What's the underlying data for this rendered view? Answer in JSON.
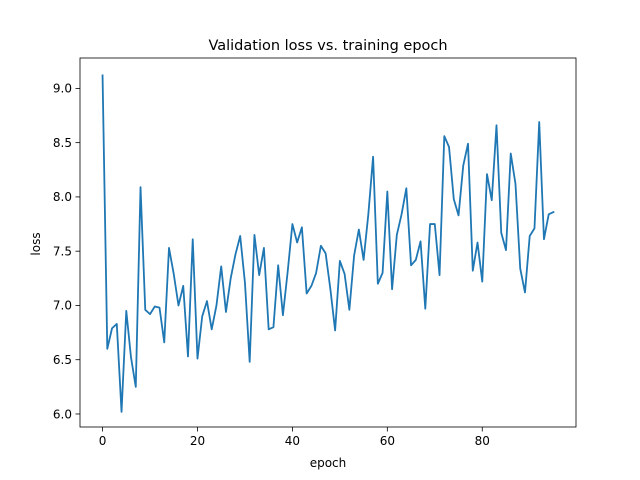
{
  "chart_data": {
    "type": "line",
    "title": "Validation loss vs. training epoch",
    "xlabel": "epoch",
    "ylabel": "loss",
    "xlim": [
      -4.75,
      99.75
    ],
    "ylim": [
      5.88,
      9.28
    ],
    "xticks": [
      0,
      20,
      40,
      60,
      80
    ],
    "xtick_labels": [
      "0",
      "20",
      "40",
      "60",
      "80"
    ],
    "yticks": [
      6.0,
      6.5,
      7.0,
      7.5,
      8.0,
      8.5,
      9.0
    ],
    "ytick_labels": [
      "6.0",
      "6.5",
      "7.0",
      "7.5",
      "8.0",
      "8.5",
      "9.0"
    ],
    "grid": false,
    "series": [
      {
        "color": "#1f77b4",
        "x": [
          0,
          1,
          2,
          3,
          4,
          5,
          6,
          7,
          8,
          9,
          10,
          11,
          12,
          13,
          14,
          15,
          16,
          17,
          18,
          19,
          20,
          21,
          22,
          23,
          24,
          25,
          26,
          27,
          28,
          29,
          30,
          31,
          32,
          33,
          34,
          35,
          36,
          37,
          38,
          39,
          40,
          41,
          42,
          43,
          44,
          45,
          46,
          47,
          48,
          49,
          50,
          51,
          52,
          53,
          54,
          55,
          56,
          57,
          58,
          59,
          60,
          61,
          62,
          63,
          64,
          65,
          66,
          67,
          68,
          69,
          70,
          71,
          72,
          73,
          74,
          75,
          76,
          77,
          78,
          79,
          80,
          81,
          82,
          83,
          84,
          85,
          86,
          87,
          88,
          89,
          90,
          91,
          92,
          93,
          94,
          95
        ],
        "values": [
          9.12,
          6.6,
          6.79,
          6.83,
          6.02,
          6.95,
          6.52,
          6.25,
          8.09,
          6.96,
          6.92,
          6.99,
          6.98,
          6.66,
          7.53,
          7.29,
          7.0,
          7.18,
          6.53,
          7.61,
          6.51,
          6.9,
          7.04,
          6.78,
          7.0,
          7.36,
          6.94,
          7.25,
          7.47,
          7.64,
          7.21,
          6.48,
          7.65,
          7.28,
          7.53,
          6.78,
          6.8,
          7.37,
          6.91,
          7.31,
          7.75,
          7.58,
          7.72,
          7.11,
          7.18,
          7.3,
          7.55,
          7.48,
          7.15,
          6.77,
          7.41,
          7.29,
          6.96,
          7.46,
          7.7,
          7.42,
          7.84,
          8.37,
          7.2,
          7.3,
          8.05,
          7.15,
          7.65,
          7.84,
          8.08,
          7.37,
          7.42,
          7.59,
          6.97,
          7.75,
          7.75,
          7.28,
          8.56,
          8.46,
          7.98,
          7.83,
          8.29,
          8.49,
          7.32,
          7.58,
          7.22,
          8.21,
          7.97,
          8.66,
          7.67,
          7.51,
          8.4,
          8.12,
          7.34,
          7.12,
          7.64,
          7.71,
          8.69,
          7.61,
          7.84,
          7.86
        ]
      }
    ]
  }
}
